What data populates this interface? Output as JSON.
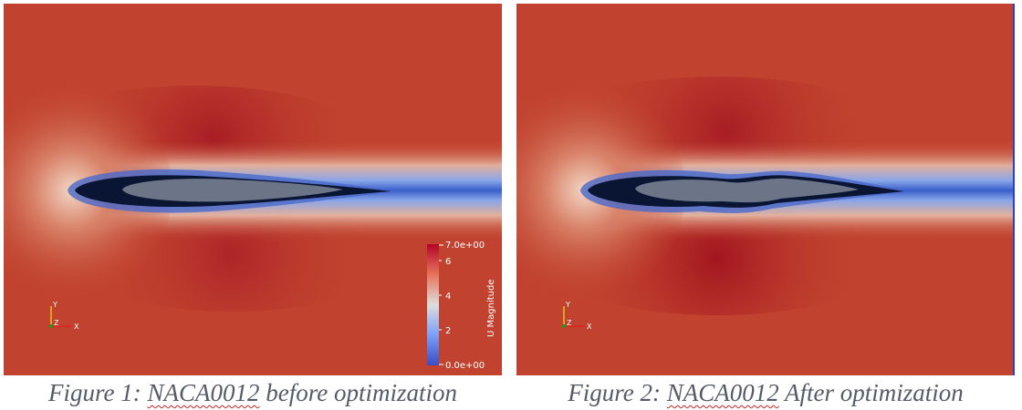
{
  "figures": [
    {
      "caption_prefix": "Figure 1: ",
      "caption_name": "NACA0012",
      "caption_suffix": " before optimization",
      "airfoil_state": "original",
      "show_colorbar": true
    },
    {
      "caption_prefix": "Figure 2: ",
      "caption_name": "NACA0012",
      "caption_suffix": " After optimization",
      "airfoil_state": "optimized",
      "show_colorbar": false
    }
  ],
  "colorbar": {
    "title": "U Magnitude",
    "max_label": "7.0e+00",
    "min_label": "0.0e+00",
    "tick_labels": [
      "6",
      "4",
      "2"
    ],
    "range": [
      0,
      7
    ],
    "colormap": "blue-white-red",
    "colors": {
      "low": "#3b4cc0",
      "mid": "#dddddd",
      "high": "#b40426"
    }
  },
  "orientation_axes": {
    "y_label": "Y",
    "z_label": "Z",
    "x_label": "X"
  },
  "colors": {
    "background": "#c1432f",
    "stagnation": "#e8c6b2",
    "wake": "#3a5fcd",
    "airfoil_dark": "#0a1433",
    "airfoil_fill": "#6b7587",
    "caption_text": "#555b66",
    "spell_underline": "#cc2222"
  }
}
